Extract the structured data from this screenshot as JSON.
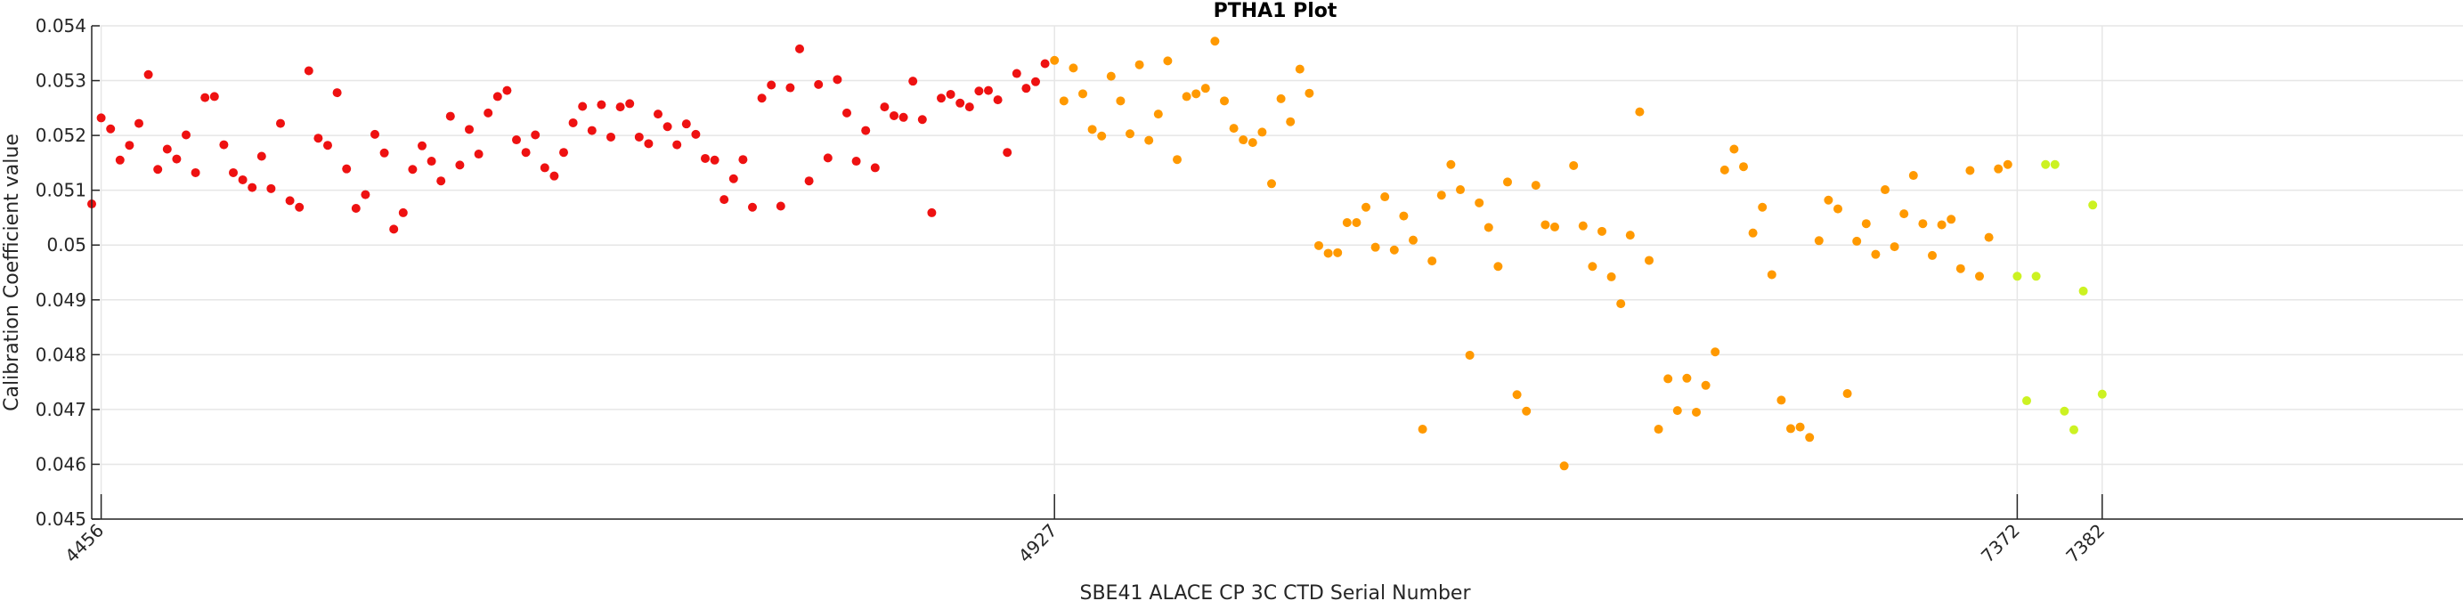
{
  "chart_data": {
    "type": "scatter",
    "title": "PTHA1 Plot",
    "xlabel": "SBE41 ALACE CP 3C CTD Serial Number",
    "ylabel": "Calibration Coefficient value",
    "ylim": [
      0.045,
      0.054
    ],
    "yticks": [
      0.045,
      0.046,
      0.047,
      0.048,
      0.049,
      0.05,
      0.051,
      0.052,
      0.053,
      0.054
    ],
    "ytick_labels": [
      "0.045",
      "0.046",
      "0.047",
      "0.048",
      "0.049",
      "0.05",
      "0.051",
      "0.052",
      "0.053",
      "0.054"
    ],
    "xlim": [
      0,
      265
    ],
    "xticks": [
      {
        "pos": 1,
        "label": "4456"
      },
      {
        "pos": 102,
        "label": "4927"
      },
      {
        "pos": 204,
        "label": "7372"
      },
      {
        "pos": 213,
        "label": "7382"
      }
    ],
    "grid": true,
    "legend": "none",
    "colors": {
      "red": "#ee1111",
      "orange": "#ff9900",
      "yellow": "#ccf222"
    },
    "series": [
      {
        "name": "red",
        "color": "#ee1111",
        "x": [
          0,
          1,
          2,
          3,
          4,
          5,
          6,
          7,
          8,
          9,
          10,
          11,
          12,
          13,
          14,
          15,
          16,
          17,
          18,
          19,
          20,
          21,
          22,
          23,
          24,
          25,
          26,
          27,
          28,
          29,
          30,
          31,
          32,
          33,
          34,
          35,
          36,
          37,
          38,
          39,
          40,
          41,
          42,
          43,
          44,
          45,
          46,
          47,
          48,
          49,
          50,
          51,
          52,
          53,
          54,
          55,
          56,
          57,
          58,
          59,
          60,
          61,
          62,
          63,
          64,
          65,
          66,
          67,
          68,
          69,
          70,
          71,
          72,
          73,
          74,
          75,
          76,
          77,
          78,
          79,
          80,
          81,
          82,
          83,
          84,
          85,
          86,
          87,
          88,
          89,
          90,
          91,
          92,
          93,
          94,
          95,
          96,
          97,
          98,
          99,
          100,
          101
        ],
        "y": [
          0.05075,
          0.05232,
          0.05212,
          0.05155,
          0.05182,
          0.05222,
          0.05311,
          0.05138,
          0.05175,
          0.05157,
          0.05201,
          0.05132,
          0.05269,
          0.05271,
          0.05183,
          0.05132,
          0.05119,
          0.05105,
          0.05162,
          0.05103,
          0.05222,
          0.05081,
          0.05069,
          0.05318,
          0.05195,
          0.05182,
          0.05278,
          0.05139,
          0.05067,
          0.05092,
          0.05202,
          0.05168,
          0.05029,
          0.05059,
          0.05138,
          0.05181,
          0.05153,
          0.05117,
          0.05235,
          0.05146,
          0.05211,
          0.05166,
          0.05241,
          0.05271,
          0.05282,
          0.05192,
          0.05169,
          0.05201,
          0.05141,
          0.05126,
          0.05169,
          0.05223,
          0.05253,
          0.05209,
          0.05256,
          0.05197,
          0.05252,
          0.05258,
          0.05197,
          0.05185,
          0.05239,
          0.05216,
          0.05183,
          0.05221,
          0.05202,
          0.05158,
          0.05155,
          0.05083,
          0.05121,
          0.05156,
          0.05069,
          0.05268,
          0.05292,
          0.05071,
          0.05287,
          0.05358,
          0.05117,
          0.05293,
          0.05159,
          0.05302,
          0.05241,
          0.05153,
          0.05209,
          0.05141,
          0.05252,
          0.05236,
          0.05233,
          0.05299,
          0.05229,
          0.05059,
          0.05268,
          0.05275,
          0.05259,
          0.05252,
          0.05281,
          0.05282,
          0.05265,
          0.05169,
          0.05313,
          0.05286,
          0.05298,
          0.05331
        ]
      },
      {
        "name": "orange",
        "color": "#ff9900",
        "x": [
          102,
          103,
          104,
          105,
          106,
          107,
          108,
          109,
          110,
          111,
          112,
          113,
          114,
          115,
          116,
          117,
          118,
          119,
          120,
          121,
          122,
          123,
          124,
          125,
          126,
          127,
          128,
          129,
          130,
          131,
          132,
          133,
          134,
          135,
          136,
          137,
          138,
          139,
          140,
          141,
          142,
          143,
          144,
          145,
          146,
          147,
          148,
          149,
          150,
          151,
          152,
          153,
          154,
          155,
          156,
          157,
          158,
          159,
          160,
          161,
          162,
          163,
          164,
          165,
          166,
          167,
          168,
          169,
          170,
          171,
          172,
          173,
          174,
          175,
          176,
          177,
          178,
          179,
          180,
          181,
          182,
          183,
          184,
          185,
          186,
          187,
          188,
          189,
          190,
          191,
          192,
          193,
          194,
          195,
          196,
          197,
          198,
          199,
          200,
          201,
          202,
          203
        ],
        "y": [
          0.05337,
          0.05263,
          0.05323,
          0.05276,
          0.05211,
          0.05199,
          0.05308,
          0.05263,
          0.05203,
          0.05329,
          0.05191,
          0.05239,
          0.05336,
          0.05156,
          0.05271,
          0.05276,
          0.05286,
          0.05372,
          0.05263,
          0.05213,
          0.05192,
          0.05187,
          0.05206,
          0.05112,
          0.05267,
          0.05225,
          0.05321,
          0.05277,
          0.04999,
          0.04985,
          0.04986,
          0.05041,
          0.05041,
          0.05069,
          0.04996,
          0.05088,
          0.04991,
          0.05053,
          0.05009,
          0.04664,
          0.04971,
          0.05091,
          0.05147,
          0.05101,
          0.04799,
          0.05077,
          0.05032,
          0.04961,
          0.05115,
          0.04727,
          0.04697,
          0.05109,
          0.05037,
          0.05033,
          0.04597,
          0.05145,
          0.05035,
          0.04961,
          0.05025,
          0.04942,
          0.04893,
          0.05018,
          0.05243,
          0.04972,
          0.04664,
          0.04756,
          0.04698,
          0.04757,
          0.04695,
          0.04744,
          0.04805,
          0.05137,
          0.05175,
          0.05143,
          0.05022,
          0.05069,
          0.04946,
          0.04717,
          0.04665,
          0.04668,
          0.04649,
          0.05008,
          0.05082,
          0.05066,
          0.04729,
          0.05007,
          0.05039,
          0.04983,
          0.05101,
          0.04997,
          0.05057,
          0.05127,
          0.05039,
          0.04981,
          0.05037,
          0.05047,
          0.04957,
          0.05136,
          0.04943,
          0.05014,
          0.05139,
          0.05147
        ]
      },
      {
        "name": "yellow",
        "color": "#ccf222",
        "x": [
          204,
          205,
          206,
          207,
          208,
          209,
          210,
          211,
          212,
          213
        ],
        "y": [
          0.04943,
          0.04716,
          0.04943,
          0.05147,
          0.05147,
          0.04697,
          0.04663,
          0.04916,
          0.05073,
          0.04728
        ]
      }
    ]
  }
}
